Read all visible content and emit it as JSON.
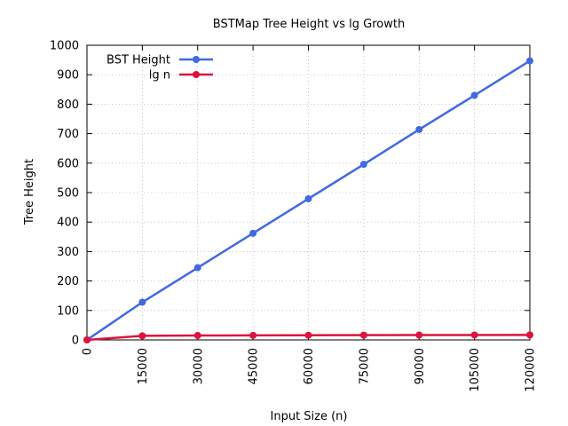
{
  "colors": {
    "background": "#ffffff",
    "axis": "#000000",
    "grid": "#a0a0a0",
    "bst_height": "#4169e1",
    "lg_n": "#dc143c"
  },
  "chart_data": {
    "type": "line",
    "title": "BSTMap Tree Height vs lg Growth",
    "xlabel": "Input Size (n)",
    "ylabel": "Tree Height",
    "x": [
      0,
      15000,
      30000,
      45000,
      60000,
      75000,
      90000,
      105000,
      120000
    ],
    "xlim": [
      0,
      120000
    ],
    "ylim": [
      0,
      1000
    ],
    "x_ticks": [
      "0",
      "15000",
      "30000",
      "45000",
      "60000",
      "75000",
      "90000",
      "105000",
      "120000"
    ],
    "y_ticks": [
      "0",
      "100",
      "200",
      "300",
      "400",
      "500",
      "600",
      "700",
      "800",
      "900",
      "1000"
    ],
    "x_tick_values": [
      0,
      15000,
      30000,
      45000,
      60000,
      75000,
      90000,
      105000,
      120000
    ],
    "y_tick_values": [
      0,
      100,
      200,
      300,
      400,
      500,
      600,
      700,
      800,
      900,
      1000
    ],
    "grid": true,
    "grid_style": "dotted",
    "legend_position": "top-left",
    "series": [
      {
        "name": "BST Height",
        "color": "#4169e1",
        "values": [
          0,
          128,
          245,
          362,
          479,
          596,
          714,
          830,
          947
        ]
      },
      {
        "name": "lg n",
        "color": "#dc143c",
        "values": [
          0,
          13.9,
          14.9,
          15.5,
          15.9,
          16.2,
          16.5,
          16.7,
          16.9
        ]
      }
    ]
  }
}
